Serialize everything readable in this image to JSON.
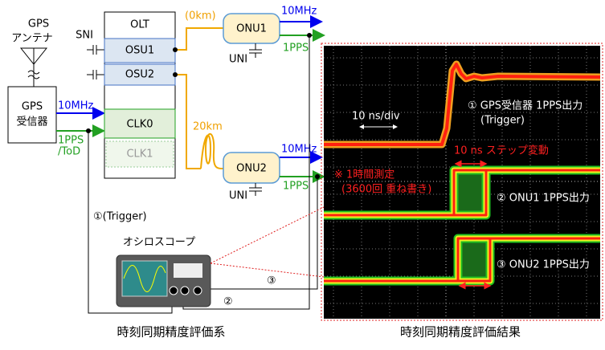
{
  "antenna": {
    "label_lines": [
      "GPS",
      "アンテナ"
    ]
  },
  "receiver": {
    "label_lines": [
      "GPS",
      "受信器"
    ],
    "out_10mhz": "10MHz",
    "out_1pps_lines": [
      "1PPS",
      "/ToD"
    ]
  },
  "sni": "SNI",
  "olt": {
    "title": "OLT",
    "units": [
      "OSU1",
      "OSU2",
      "CLK0",
      "CLK1"
    ]
  },
  "onu1": {
    "distance": "(0km)",
    "label": "ONU1",
    "out_10mhz": "10MHz",
    "out_1pps": "1PPS",
    "uni": "UNI"
  },
  "onu2": {
    "distance": "20km",
    "label": "ONU2",
    "out_10mhz": "10MHz",
    "out_1pps": "1PPS",
    "uni": "UNI"
  },
  "scope": {
    "label": "オシロスコープ",
    "trigger": "①(Trigger)",
    "ch2": "②",
    "ch3": "③"
  },
  "result": {
    "timebase": "10 ns/div",
    "trace1_lines": [
      "① GPS受信器 1PPS出力",
      "(Trigger)"
    ],
    "step": "10 ns ステップ変動",
    "note_lines": [
      "※ 1時間測定",
      "(3600回 重ね書き)"
    ],
    "trace2": "② ONU1 1PPS出力",
    "trace3": "③ ONU2 1PPS出力"
  },
  "captions": [
    "時刻同期精度評価系",
    "時刻同期精度評価結果"
  ]
}
